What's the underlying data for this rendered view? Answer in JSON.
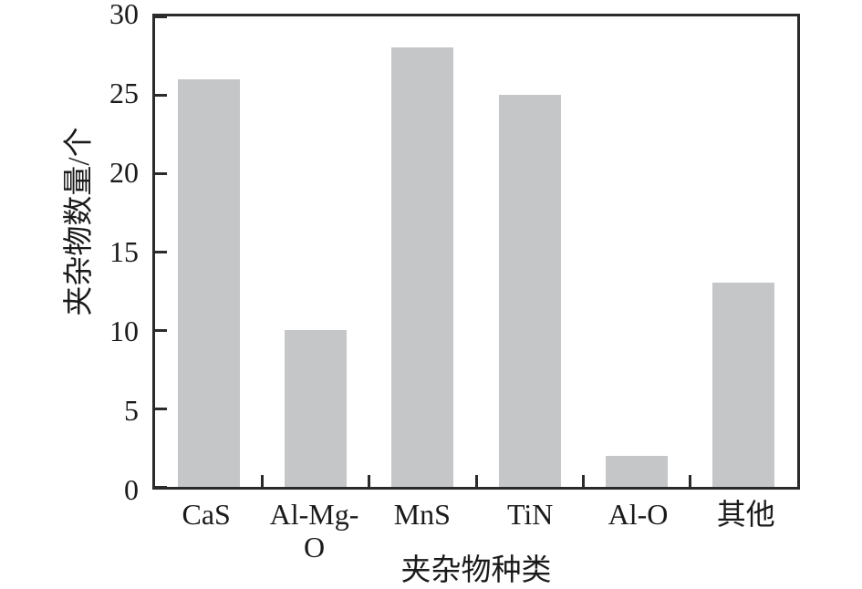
{
  "chart_data": {
    "type": "bar",
    "title": "",
    "categories": [
      "CaS",
      "Al-Mg-O",
      "MnS",
      "TiN",
      "Al-O",
      "其他"
    ],
    "values": [
      26,
      10,
      28,
      25,
      2,
      13
    ],
    "xlabel": "夹杂物种类",
    "ylabel": "夹杂物数量/个",
    "ylim": [
      0,
      30
    ],
    "yticks": [
      0,
      5,
      10,
      15,
      20,
      25,
      30
    ],
    "grid": false,
    "legend": false,
    "bar_color": "#c5c6c8",
    "axis_color": "#2b2b2b",
    "text_color": "#1a1a1a"
  }
}
